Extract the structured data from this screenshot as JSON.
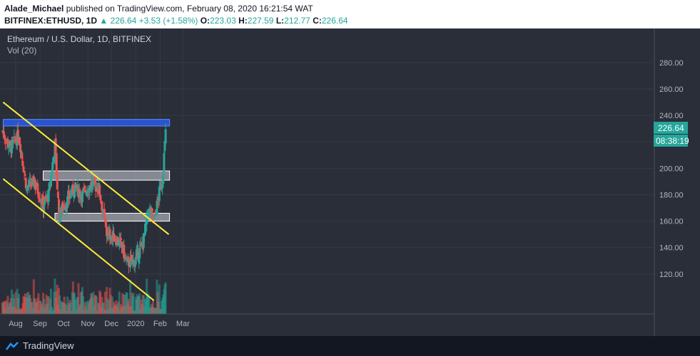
{
  "header": {
    "author": "Alade_Michael",
    "published_text": "published on TradingView.com, February 08, 2020 16:21:54 WAT",
    "symbol": "BITFINEX:ETHUSD, 1D",
    "last": "226.64",
    "change": "+3.53 (+1.58%)",
    "o_label": "O:",
    "o_value": "223.03",
    "h_label": "H:",
    "h_value": "227.59",
    "l_label": "L:",
    "l_value": "212.77",
    "c_label": "C:",
    "c_value": "226.64"
  },
  "chart_legend": {
    "title": "Ethereum / U.S. Dollar, 1D, BITFINEX",
    "indicator": "Vol (20)"
  },
  "price_badge": {
    "price": "226.64",
    "countdown": "08:38:19"
  },
  "footer": {
    "brand": "TradingView"
  },
  "colors": {
    "background": "#2a2e39",
    "up": "#26a69a",
    "down": "#ef5350",
    "trendline": "#ffeb3b",
    "resistance_zone": "#2962ff",
    "support_zone": "#d1d4dc"
  },
  "chart_data": {
    "type": "candlestick",
    "title": "Ethereum / U.S. Dollar, 1D, BITFINEX",
    "y_ticks": [
      120,
      140,
      160,
      180,
      200,
      220,
      240,
      260,
      280
    ],
    "y_tick_labels": [
      "120.00",
      "140.00",
      "160.00",
      "180.00",
      "200.00",
      "240.00",
      "260.00",
      "280.00"
    ],
    "ylim": [
      100,
      295
    ],
    "x_labels": [
      "Aug",
      "Sep",
      "Oct",
      "Nov",
      "Dec",
      "2020",
      "Feb",
      "Mar"
    ],
    "approx_close_path": [
      {
        "date": "2019-07-15",
        "close": 228
      },
      {
        "date": "2019-07-25",
        "close": 215
      },
      {
        "date": "2019-08-05",
        "close": 225
      },
      {
        "date": "2019-08-15",
        "close": 185
      },
      {
        "date": "2019-08-25",
        "close": 190
      },
      {
        "date": "2019-09-05",
        "close": 172
      },
      {
        "date": "2019-09-12",
        "close": 180
      },
      {
        "date": "2019-09-20",
        "close": 218
      },
      {
        "date": "2019-09-25",
        "close": 165
      },
      {
        "date": "2019-10-05",
        "close": 175
      },
      {
        "date": "2019-10-15",
        "close": 185
      },
      {
        "date": "2019-10-25",
        "close": 180
      },
      {
        "date": "2019-11-05",
        "close": 188
      },
      {
        "date": "2019-11-15",
        "close": 185
      },
      {
        "date": "2019-11-25",
        "close": 150
      },
      {
        "date": "2019-12-05",
        "close": 148
      },
      {
        "date": "2019-12-15",
        "close": 140
      },
      {
        "date": "2019-12-20",
        "close": 128
      },
      {
        "date": "2019-12-31",
        "close": 130
      },
      {
        "date": "2020-01-10",
        "close": 143
      },
      {
        "date": "2020-01-17",
        "close": 168
      },
      {
        "date": "2020-01-25",
        "close": 162
      },
      {
        "date": "2020-02-01",
        "close": 185
      },
      {
        "date": "2020-02-04",
        "close": 192
      },
      {
        "date": "2020-02-08",
        "close": 226.64
      }
    ],
    "trendlines": [
      {
        "name": "upper",
        "from": {
          "date": "2019-07-16",
          "price": 250
        },
        "to": {
          "date": "2020-02-12",
          "price": 150
        }
      },
      {
        "name": "lower",
        "from": {
          "date": "2019-07-16",
          "price": 192
        },
        "to": {
          "date": "2020-01-24",
          "price": 100
        }
      }
    ],
    "zones": [
      {
        "name": "resistance",
        "from": "2019-07-16",
        "to": "2020-02-13",
        "low": 232,
        "high": 237
      },
      {
        "name": "supply",
        "from": "2019-09-05",
        "to": "2020-02-13",
        "low": 191,
        "high": 198
      },
      {
        "name": "support",
        "from": "2019-09-20",
        "to": "2020-02-13",
        "low": 160,
        "high": 166
      }
    ],
    "grid": true
  }
}
